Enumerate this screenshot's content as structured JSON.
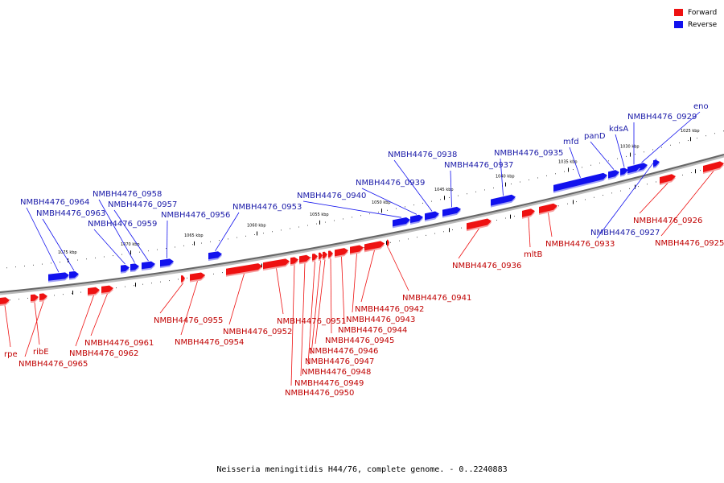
{
  "legend": [
    {
      "label": "Forward",
      "color": "#ee1111"
    },
    {
      "label": "Reverse",
      "color": "#1111ee"
    }
  ],
  "caption": "Neisseria meningitidis H44/76, complete genome. - 0..2240883",
  "colors": {
    "forward": "#ee1111",
    "reverse": "#1111ee",
    "backbone": "#666666",
    "forward_label": "#c00000",
    "reverse_label": "#1a1aa8"
  },
  "ticks": [
    "1025 kbp",
    "1030 kbp",
    "1035 kbp",
    "1040 kbp",
    "1045 kbp",
    "1050 kbp",
    "1055 kbp",
    "1060 kbp",
    "1065 kbp",
    "1070 kbp",
    "1075 kbp"
  ],
  "genes": [
    {
      "name": "eno",
      "strand": "reverse"
    },
    {
      "name": "NMBH4476_0929",
      "strand": "reverse"
    },
    {
      "name": "kdsA",
      "strand": "reverse"
    },
    {
      "name": "panD",
      "strand": "reverse"
    },
    {
      "name": "mfd",
      "strand": "reverse"
    },
    {
      "name": "NMBH4476_0935",
      "strand": "reverse"
    },
    {
      "name": "NMBH4476_0937",
      "strand": "reverse"
    },
    {
      "name": "NMBH4476_0938",
      "strand": "reverse"
    },
    {
      "name": "NMBH4476_0939",
      "strand": "reverse"
    },
    {
      "name": "NMBH4476_0940",
      "strand": "reverse"
    },
    {
      "name": "NMBH4476_0953",
      "strand": "reverse"
    },
    {
      "name": "NMBH4476_0956",
      "strand": "reverse"
    },
    {
      "name": "NMBH4476_0957",
      "strand": "reverse"
    },
    {
      "name": "NMBH4476_0958",
      "strand": "reverse"
    },
    {
      "name": "NMBH4476_0959",
      "strand": "reverse"
    },
    {
      "name": "NMBH4476_0963",
      "strand": "reverse"
    },
    {
      "name": "NMBH4476_0964",
      "strand": "reverse"
    },
    {
      "name": "NMBH4476_0927",
      "strand": "reverse"
    },
    {
      "name": "NMBH4476_0926",
      "strand": "forward"
    },
    {
      "name": "NMBH4476_0925",
      "strand": "forward"
    },
    {
      "name": "NMBH4476_0933",
      "strand": "forward"
    },
    {
      "name": "mltB",
      "strand": "forward"
    },
    {
      "name": "NMBH4476_0936",
      "strand": "forward"
    },
    {
      "name": "NMBH4476_0941",
      "strand": "forward"
    },
    {
      "name": "NMBH4476_0942",
      "strand": "forward"
    },
    {
      "name": "NMBH4476_0943",
      "strand": "forward"
    },
    {
      "name": "NMBH4476_0944",
      "strand": "forward"
    },
    {
      "name": "NMBH4476_0945",
      "strand": "forward"
    },
    {
      "name": "NMBH4476_0946",
      "strand": "forward"
    },
    {
      "name": "NMBH4476_0947",
      "strand": "forward"
    },
    {
      "name": "NMBH4476_0948",
      "strand": "forward"
    },
    {
      "name": "NMBH4476_0949",
      "strand": "forward"
    },
    {
      "name": "NMBH4476_0950",
      "strand": "forward"
    },
    {
      "name": "NMBH4476_0951",
      "strand": "forward"
    },
    {
      "name": "NMBH4476_0952",
      "strand": "forward"
    },
    {
      "name": "NMBH4476_0954",
      "strand": "forward"
    },
    {
      "name": "NMBH4476_0955",
      "strand": "forward"
    },
    {
      "name": "NMBH4476_0961",
      "strand": "forward"
    },
    {
      "name": "NMBH4476_0962",
      "strand": "forward"
    },
    {
      "name": "ribE",
      "strand": "forward"
    },
    {
      "name": "NMBH4476_0965",
      "strand": "forward"
    },
    {
      "name": "rpe",
      "strand": "forward"
    }
  ]
}
